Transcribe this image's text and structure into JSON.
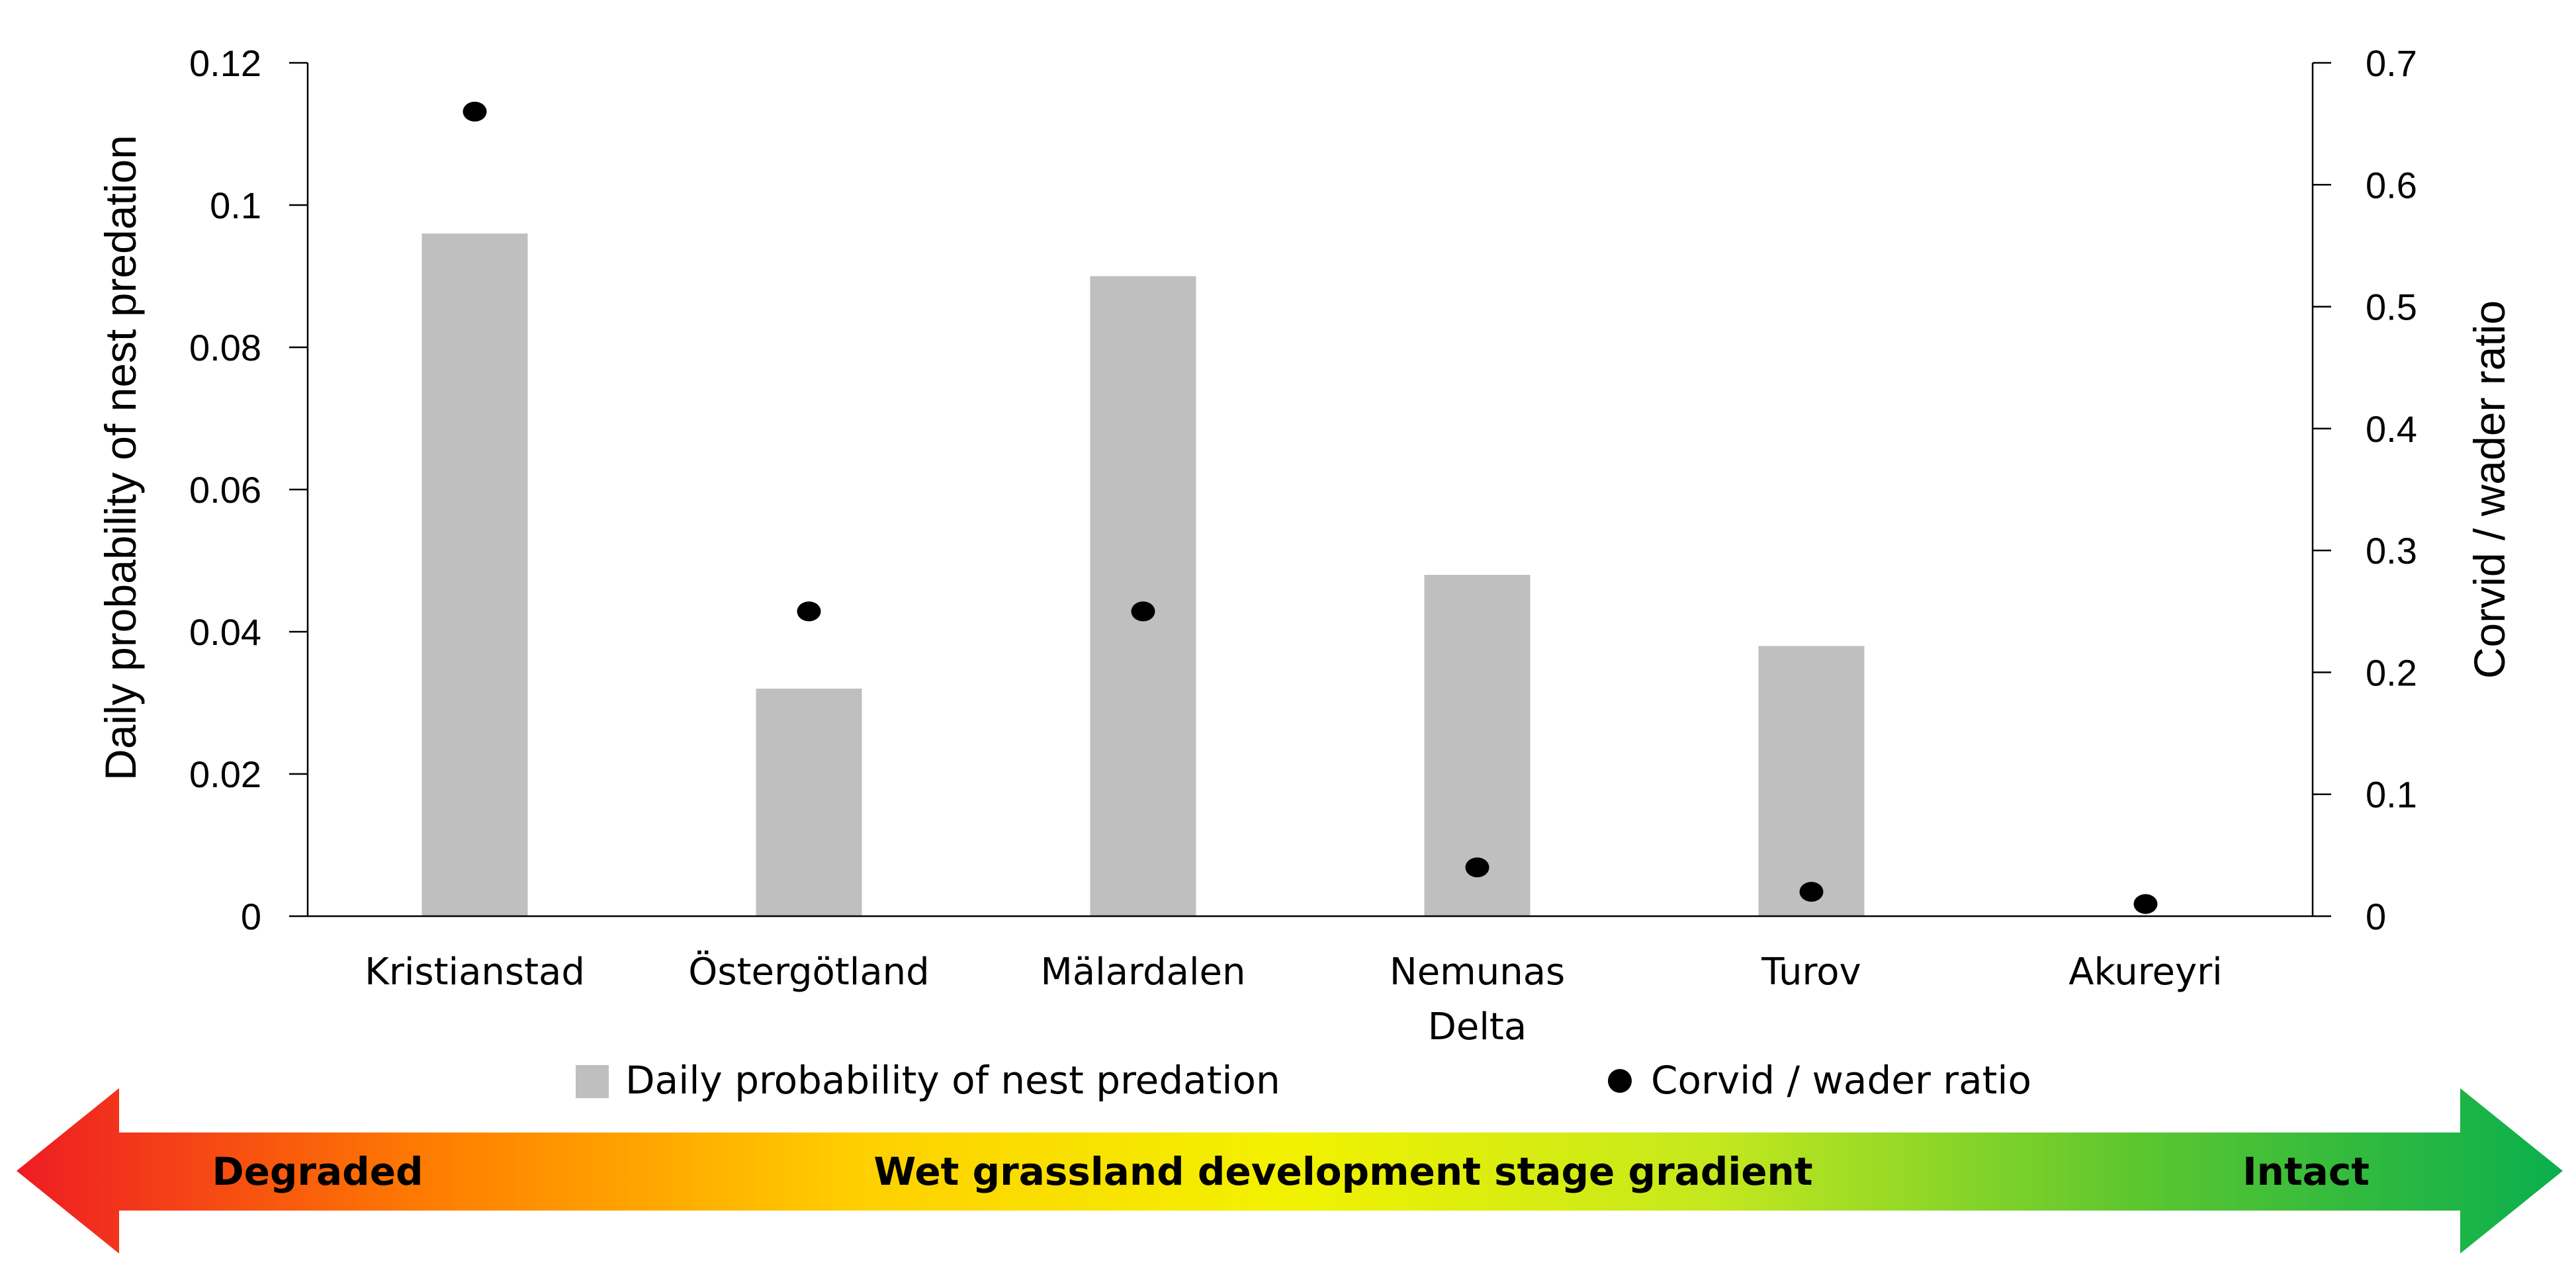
{
  "chart_data": {
    "type": "bar",
    "categories": [
      "Kristianstad",
      "Östergötland",
      "Mälardalen",
      "Nemunas Delta",
      "Turov",
      "Akureyri"
    ],
    "category_lines": [
      [
        "Kristianstad"
      ],
      [
        "Östergötland"
      ],
      [
        "Mälardalen"
      ],
      [
        "Nemunas",
        "Delta"
      ],
      [
        "Turov"
      ],
      [
        "Akureyri"
      ]
    ],
    "series": [
      {
        "name": "Daily probability of nest predation",
        "kind": "bar",
        "axis": "left",
        "color": "#bfbfbf",
        "values": [
          0.096,
          0.032,
          0.09,
          0.048,
          0.038,
          null
        ]
      },
      {
        "name": "Corvid / wader ratio",
        "kind": "scatter",
        "axis": "right",
        "color": "#000000",
        "values": [
          0.66,
          0.25,
          0.25,
          0.04,
          0.02,
          0.01
        ]
      }
    ],
    "ylabel": "Daily probability of nest predation",
    "ylim": [
      0,
      0.12
    ],
    "yticks": [
      "0",
      "0.02",
      "0.04",
      "0.06",
      "0.08",
      "0.1",
      "0.12"
    ],
    "y2label": "Corvid / wader ratio",
    "y2lim": [
      0,
      0.7
    ],
    "y2ticks": [
      "0",
      "0.1",
      "0.2",
      "0.3",
      "0.4",
      "0.5",
      "0.6",
      "0.7"
    ],
    "legend_position": "bottom"
  },
  "gradient_arrow": {
    "left_label": "Degraded",
    "center_label": "Wet grassland development stage gradient",
    "right_label": "Intact",
    "colors": [
      "#ee1c24",
      "#ff7f00",
      "#ffd000",
      "#f2f200",
      "#c4e81e",
      "#5cc62f",
      "#0aaf4d"
    ]
  }
}
